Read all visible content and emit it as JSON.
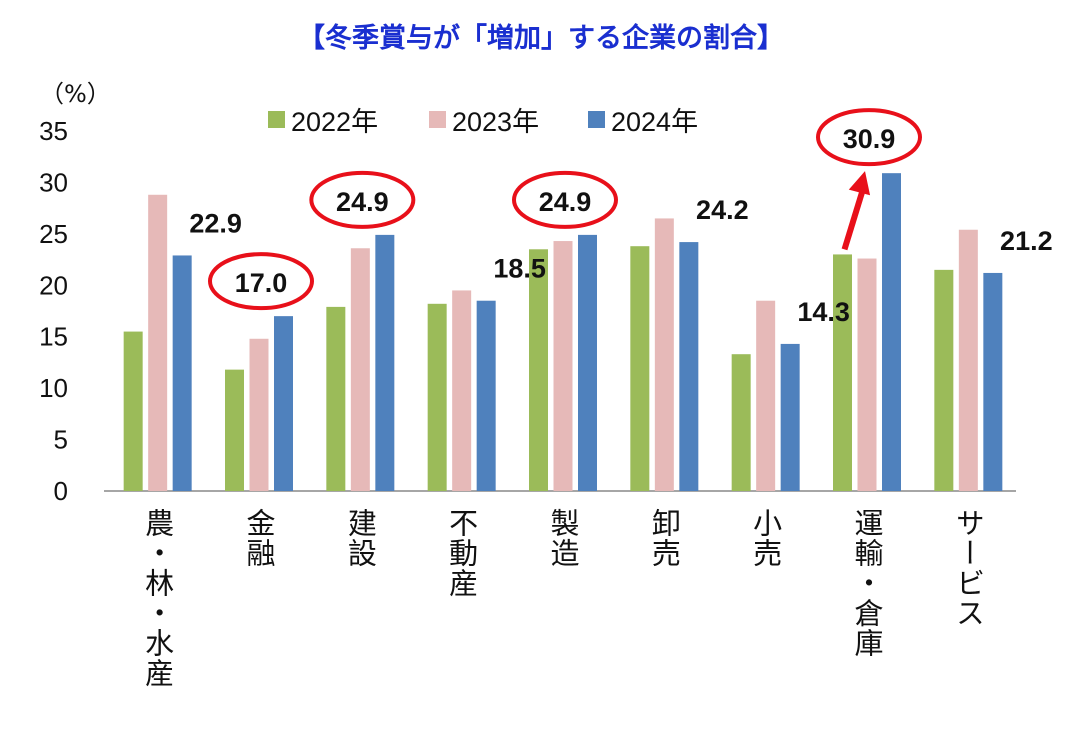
{
  "chart_data": {
    "type": "bar",
    "title": "【冬季賞与が「増加」する企業の割合】",
    "ylabel": "（%）",
    "ylim": [
      0,
      35
    ],
    "yticks": [
      0,
      5,
      10,
      15,
      20,
      25,
      30,
      35
    ],
    "grid": false,
    "legend_position": "top",
    "categories": [
      "農・林・水産",
      "金融",
      "建設",
      "不動産",
      "製造",
      "卸売",
      "小売",
      "運輸・倉庫",
      "サービス"
    ],
    "series": [
      {
        "name": "2022年",
        "color": "#9bbb59",
        "values": [
          15.5,
          11.8,
          17.9,
          18.2,
          23.5,
          23.8,
          13.3,
          23.0,
          21.5
        ]
      },
      {
        "name": "2023年",
        "color": "#e6b9b8",
        "values": [
          28.8,
          14.8,
          23.6,
          19.5,
          24.3,
          26.5,
          18.5,
          22.6,
          25.4
        ]
      },
      {
        "name": "2024年",
        "color": "#4f81bd",
        "values": [
          22.9,
          17.0,
          24.9,
          18.5,
          24.9,
          24.2,
          14.3,
          30.9,
          21.2
        ]
      }
    ],
    "data_labels": [
      "22.9",
      "17.0",
      "24.9",
      "18.5",
      "24.9",
      "24.2",
      "14.3",
      "30.9",
      "21.2"
    ],
    "highlighted_categories": [
      "金融",
      "建設",
      "製造",
      "運輸・倉庫"
    ],
    "arrow_category": "運輸・倉庫",
    "highlight_color": "#e8101a"
  }
}
